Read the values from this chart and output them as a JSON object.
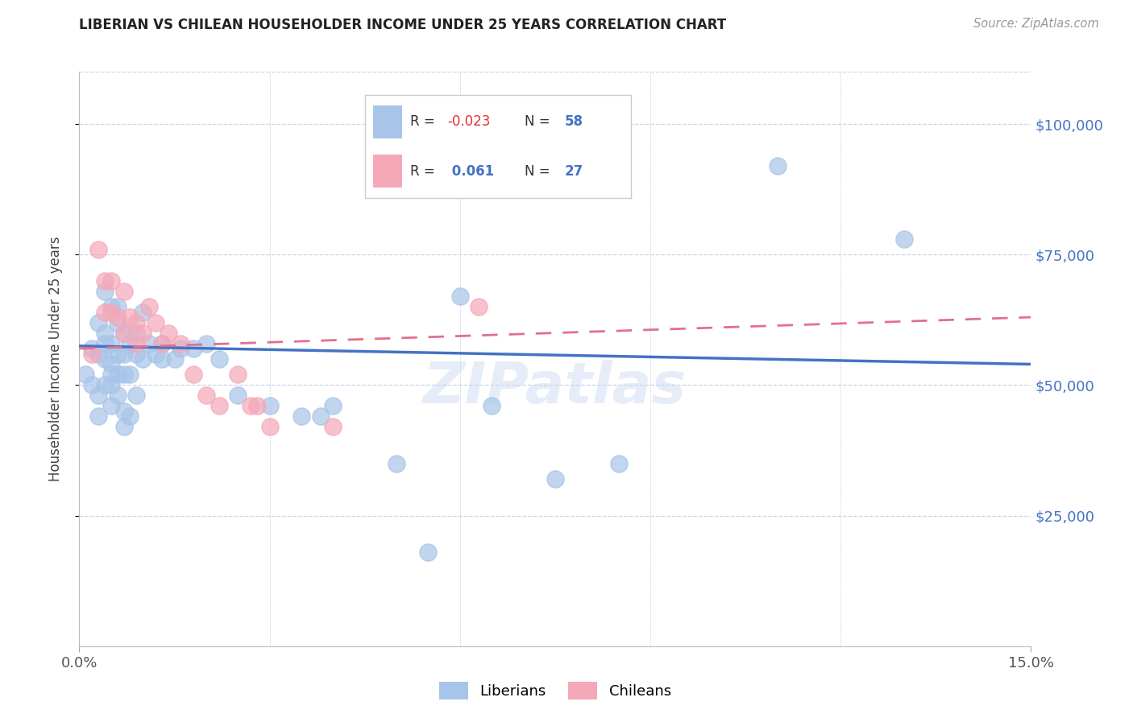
{
  "title": "LIBERIAN VS CHILEAN HOUSEHOLDER INCOME UNDER 25 YEARS CORRELATION CHART",
  "source": "Source: ZipAtlas.com",
  "ylabel": "Householder Income Under 25 years",
  "ytick_labels": [
    "$25,000",
    "$50,000",
    "$75,000",
    "$100,000"
  ],
  "ytick_values": [
    25000,
    50000,
    75000,
    100000
  ],
  "xlim": [
    0.0,
    0.15
  ],
  "ylim": [
    0,
    110000
  ],
  "liberian_color": "#a8c4e8",
  "chilean_color": "#f4a8b8",
  "liberian_line_color": "#4472c4",
  "chilean_line_color": "#e07090",
  "background_color": "#ffffff",
  "grid_color": "#c8d4e8",
  "watermark": "ZIPatlas",
  "liberian_x": [
    0.001,
    0.002,
    0.002,
    0.003,
    0.003,
    0.003,
    0.003,
    0.004,
    0.004,
    0.004,
    0.004,
    0.004,
    0.005,
    0.005,
    0.005,
    0.005,
    0.005,
    0.005,
    0.006,
    0.006,
    0.006,
    0.006,
    0.006,
    0.007,
    0.007,
    0.007,
    0.007,
    0.007,
    0.008,
    0.008,
    0.008,
    0.009,
    0.009,
    0.009,
    0.01,
    0.01,
    0.011,
    0.012,
    0.013,
    0.013,
    0.015,
    0.016,
    0.018,
    0.02,
    0.022,
    0.025,
    0.03,
    0.035,
    0.038,
    0.04,
    0.05,
    0.055,
    0.06,
    0.065,
    0.075,
    0.085,
    0.11,
    0.13
  ],
  "liberian_y": [
    52000,
    57000,
    50000,
    56000,
    62000,
    48000,
    44000,
    60000,
    68000,
    55000,
    58000,
    50000,
    65000,
    58000,
    54000,
    50000,
    46000,
    52000,
    62000,
    65000,
    56000,
    52000,
    48000,
    60000,
    56000,
    52000,
    45000,
    42000,
    58000,
    52000,
    44000,
    60000,
    56000,
    48000,
    64000,
    55000,
    58000,
    56000,
    58000,
    55000,
    55000,
    57000,
    57000,
    58000,
    55000,
    48000,
    46000,
    44000,
    44000,
    46000,
    35000,
    18000,
    67000,
    46000,
    32000,
    35000,
    92000,
    78000
  ],
  "chilean_x": [
    0.002,
    0.003,
    0.004,
    0.004,
    0.005,
    0.005,
    0.006,
    0.007,
    0.007,
    0.008,
    0.009,
    0.009,
    0.01,
    0.011,
    0.012,
    0.013,
    0.014,
    0.016,
    0.018,
    0.02,
    0.022,
    0.025,
    0.027,
    0.028,
    0.03,
    0.04,
    0.063
  ],
  "chilean_y": [
    56000,
    76000,
    70000,
    64000,
    70000,
    64000,
    63000,
    68000,
    60000,
    63000,
    62000,
    58000,
    60000,
    65000,
    62000,
    58000,
    60000,
    58000,
    52000,
    48000,
    46000,
    52000,
    46000,
    46000,
    42000,
    42000,
    65000
  ],
  "lib_line_x0": 0.0,
  "lib_line_y0": 57500,
  "lib_line_x1": 0.15,
  "lib_line_y1": 54000,
  "chi_line_x0": 0.0,
  "chi_line_y0": 57000,
  "chi_line_x1": 0.15,
  "chi_line_y1": 63000
}
